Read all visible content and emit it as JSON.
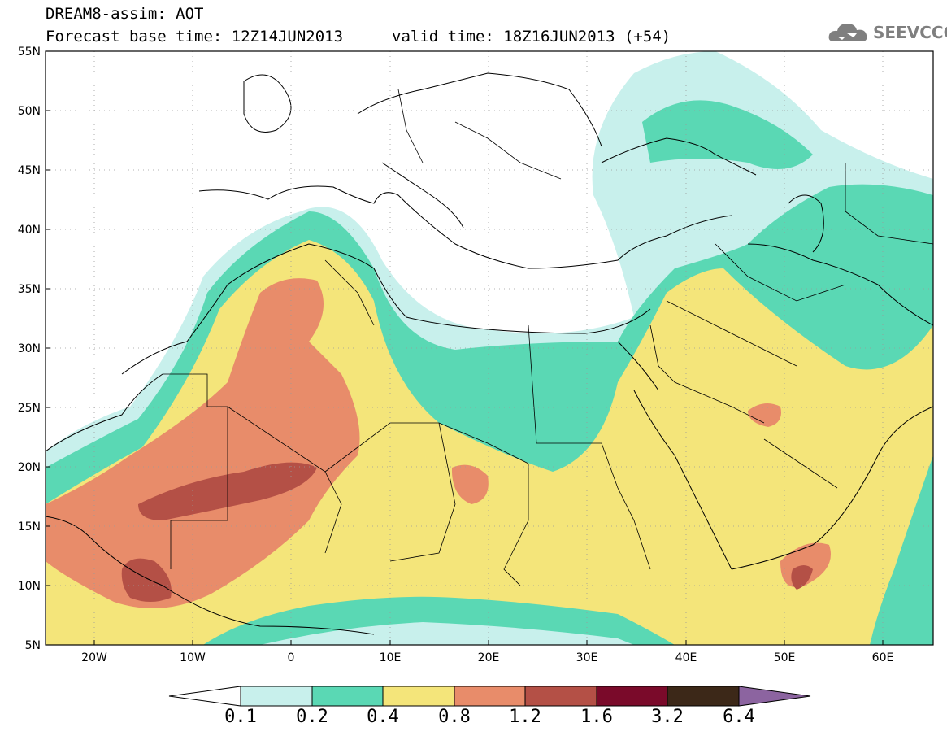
{
  "title": {
    "line1": "DREAM8-assim: AOT",
    "line2": "Forecast base time: 12Z14JUN2013",
    "line3": "valid time: 18Z16JUN2013 (+54)"
  },
  "logo": {
    "text": "SEEVCCC",
    "icon": "cloud-icon"
  },
  "map": {
    "lat_labels": [
      "55N",
      "50N",
      "45N",
      "40N",
      "35N",
      "30N",
      "25N",
      "20N",
      "15N",
      "10N",
      "5N"
    ],
    "lon_labels": [
      "20W",
      "10W",
      "0",
      "10E",
      "20E",
      "30E",
      "40E",
      "50E",
      "60E"
    ],
    "lat_range": [
      5,
      55
    ],
    "lon_range": [
      -25,
      65
    ],
    "grid": "dotted"
  },
  "colorbar": {
    "labels": [
      "0.1",
      "0.2",
      "0.4",
      "0.8",
      "1.2",
      "1.6",
      "3.2",
      "6.4"
    ],
    "colors": [
      "#c8f0ec",
      "#5ad8b4",
      "#f4e57a",
      "#e88c6a",
      "#b45046",
      "#7a0a2a",
      "#3c2818",
      "#8c64a0"
    ]
  }
}
